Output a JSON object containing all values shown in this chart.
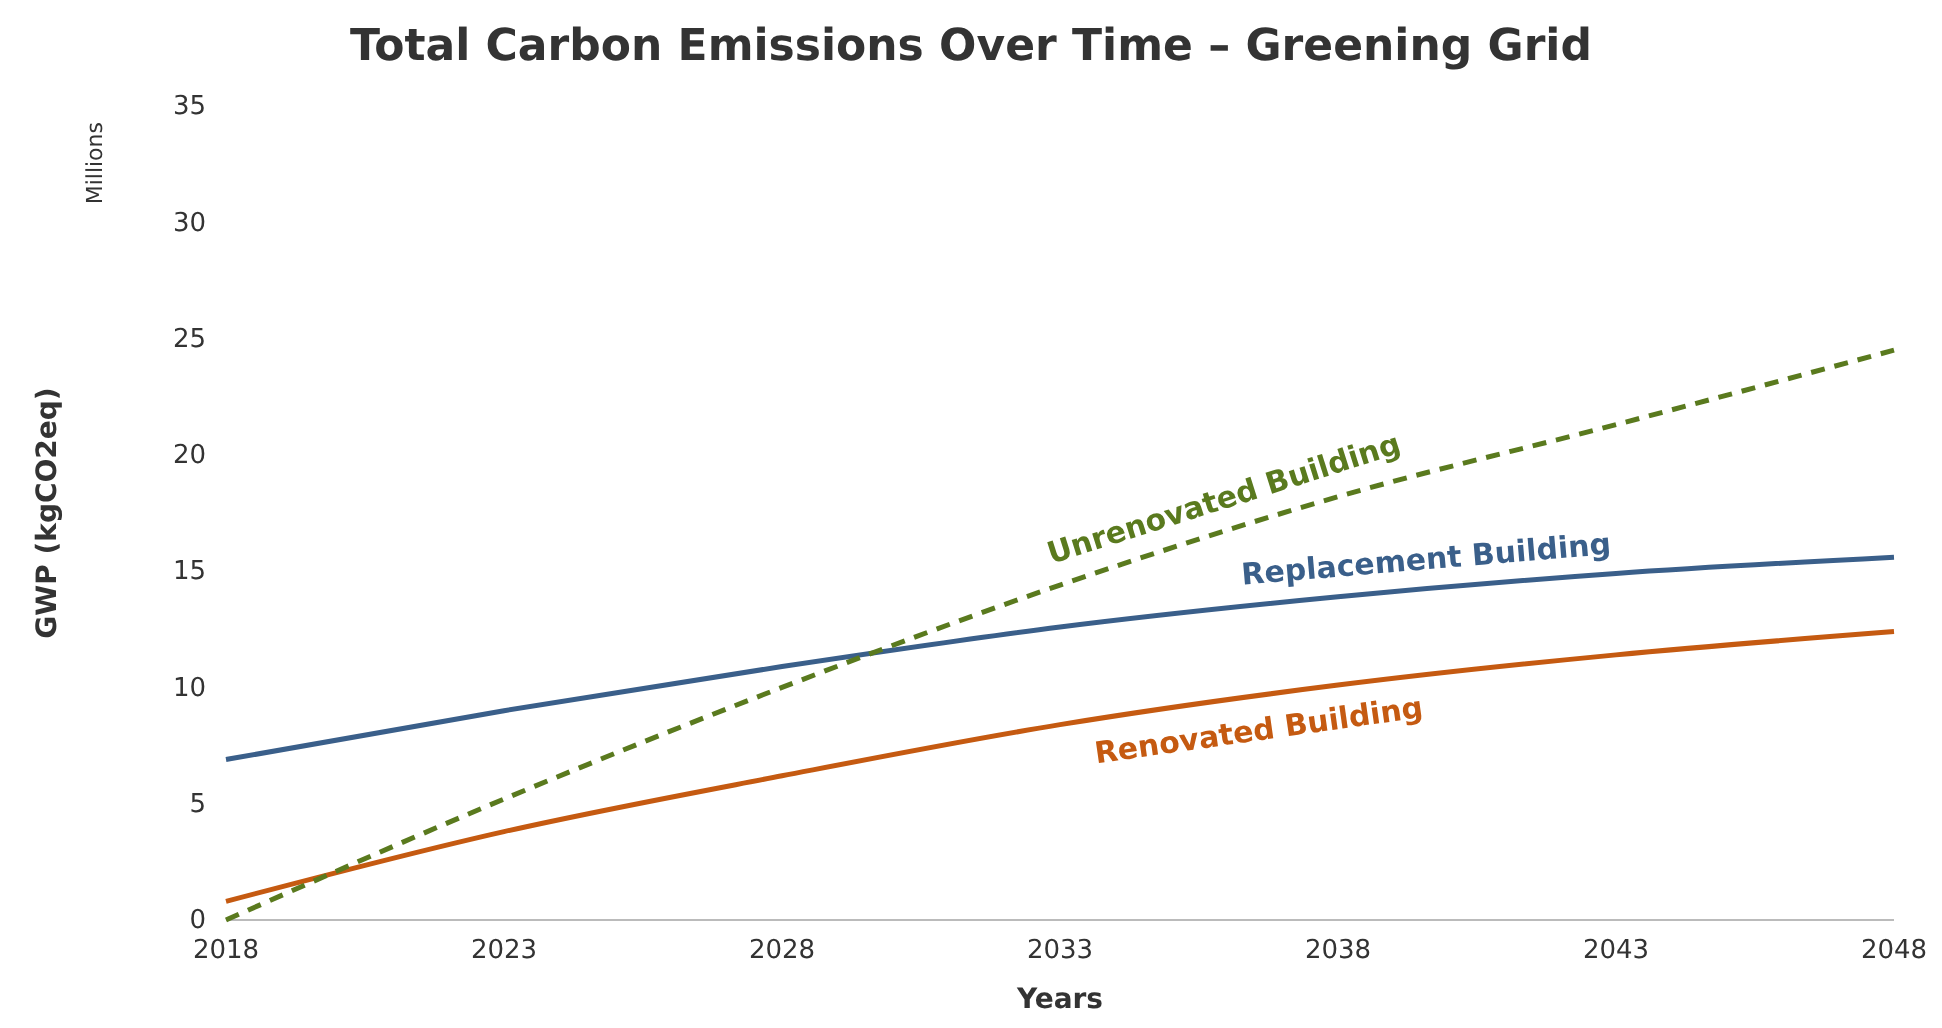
{
  "chart_data": {
    "type": "line",
    "title": "Total Carbon Emissions Over Time – Greening Grid",
    "xlabel": "Years",
    "ylabel": "GWP (kgCO2eq)",
    "annotations": [
      "Millions"
    ],
    "x": [
      2018,
      2023,
      2028,
      2033,
      2038,
      2043,
      2048
    ],
    "xlim": [
      2018,
      2048
    ],
    "xticks": [
      2018,
      2023,
      2028,
      2033,
      2038,
      2043,
      2048
    ],
    "ylim": [
      0,
      35
    ],
    "yticks": [
      0,
      5,
      10,
      15,
      20,
      25,
      30,
      35
    ],
    "series": [
      {
        "name": "Replacement Building",
        "color": "#3a5f8a",
        "values": [
          6.9,
          9.0,
          10.9,
          12.6,
          13.9,
          14.9,
          15.6
        ]
      },
      {
        "name": "Renovated Building",
        "color": "#c55a11",
        "values": [
          0.8,
          3.8,
          6.2,
          8.4,
          10.1,
          11.4,
          12.4
        ]
      },
      {
        "name": "Unrenovated Building",
        "color": "#5a7a1e",
        "line_style": "dashed",
        "values": [
          0,
          5.2,
          10,
          14.4,
          18.2,
          21.3,
          24.5
        ]
      }
    ]
  }
}
